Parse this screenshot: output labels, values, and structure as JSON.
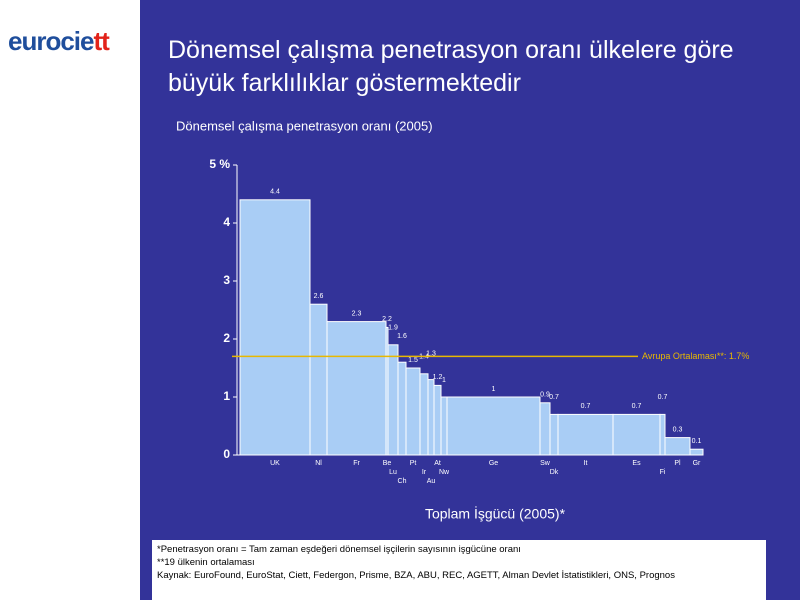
{
  "logo": "eurociett",
  "notes": [
    "*Penetrasyon oranı = Tam zaman eşdeğeri dönemsel işçilerin sayısının işgücüne oranı",
    "**19 ülkenin ortalaması",
    "Kaynak: EuroFound, EuroStat, Ciett, Federgon, Prisme, BZA, ABU, REC, AGETT, Alman Devlet İstatistikleri, ONS, Prognos"
  ],
  "chart_data": {
    "type": "bar",
    "title": "Dönemsel çalışma penetrasyon oranı ülkelere göre büyük farklılıklar göstermektedir",
    "subtitle": "Dönemsel çalışma penetrasyon oranı (2005)",
    "x_label": "Toplam İşgücü (2005)*",
    "categories": [
      "UK",
      "Nl",
      "Fr",
      "Be",
      "Lu",
      "Ch",
      "Pt",
      "Ir",
      "Au",
      "At",
      "Nw",
      "Ge",
      "Sw",
      "Dk",
      "It",
      "Es",
      "Fi",
      "Pl",
      "Gr"
    ],
    "values": [
      4.4,
      2.6,
      2.3,
      2.2,
      1.9,
      1.6,
      1.5,
      1.4,
      1.3,
      1.2,
      1.0,
      1.0,
      0.9,
      0.7,
      0.7,
      0.7,
      0.7,
      0.3,
      0.1
    ],
    "widths": [
      70,
      17,
      59,
      2,
      10,
      8,
      14,
      8,
      6,
      7,
      6,
      93,
      10,
      8,
      55,
      47,
      5,
      25,
      13
    ],
    "color": "#a9cdf5",
    "ylim": [
      0,
      5
    ],
    "yticks": [
      0,
      1,
      2,
      3,
      4,
      {
        "value": 5,
        "label": "5 %"
      }
    ],
    "average": {
      "value": 1.7,
      "label": "Avrupa Ortalaması**: 1.7%",
      "color": "#e8b800"
    }
  }
}
